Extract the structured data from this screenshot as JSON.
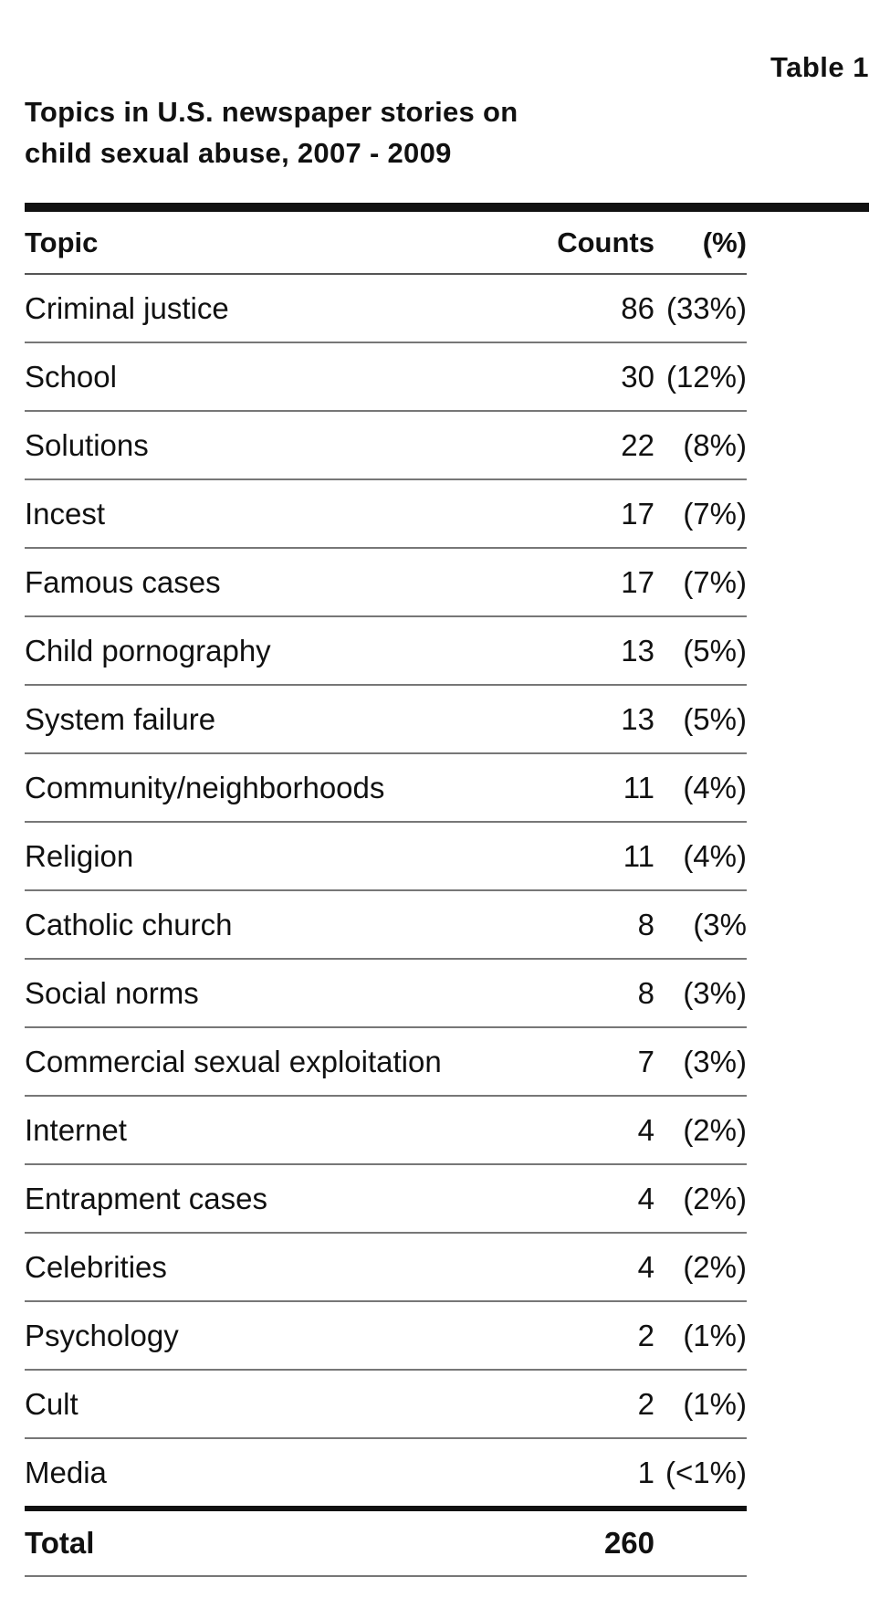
{
  "table_label": "Table 1",
  "title_line1": "Topics in U.S. newspaper stories on",
  "title_line2": "child sexual abuse, 2007 - 2009",
  "columns": {
    "topic": "Topic",
    "counts": "Counts",
    "percent": "(%)"
  },
  "rows": [
    {
      "topic": "Criminal justice",
      "count": "86",
      "percent": "(33%)"
    },
    {
      "topic": "School",
      "count": "30",
      "percent": "(12%)"
    },
    {
      "topic": "Solutions",
      "count": "22",
      "percent": "(8%)"
    },
    {
      "topic": "Incest",
      "count": "17",
      "percent": "(7%)"
    },
    {
      "topic": "Famous cases",
      "count": "17",
      "percent": "(7%)"
    },
    {
      "topic": "Child pornography",
      "count": "13",
      "percent": "(5%)"
    },
    {
      "topic": "System failure",
      "count": "13",
      "percent": "(5%)"
    },
    {
      "topic": "Community/neighborhoods",
      "count": "11",
      "percent": "(4%)"
    },
    {
      "topic": "Religion",
      "count": "11",
      "percent": "(4%)"
    },
    {
      "topic": "Catholic church",
      "count": "8",
      "percent": "(3%"
    },
    {
      "topic": "Social norms",
      "count": "8",
      "percent": "(3%)"
    },
    {
      "topic": "Commercial sexual exploitation",
      "count": "7",
      "percent": "(3%)"
    },
    {
      "topic": "Internet",
      "count": "4",
      "percent": "(2%)"
    },
    {
      "topic": "Entrapment cases",
      "count": "4",
      "percent": "(2%)"
    },
    {
      "topic": "Celebrities",
      "count": "4",
      "percent": "(2%)"
    },
    {
      "topic": "Psychology",
      "count": "2",
      "percent": "(1%)"
    },
    {
      "topic": "Cult",
      "count": "2",
      "percent": "(1%)"
    },
    {
      "topic": "Media",
      "count": "1",
      "percent": "(<1%)"
    }
  ],
  "total": {
    "label": "Total",
    "count": "260"
  }
}
